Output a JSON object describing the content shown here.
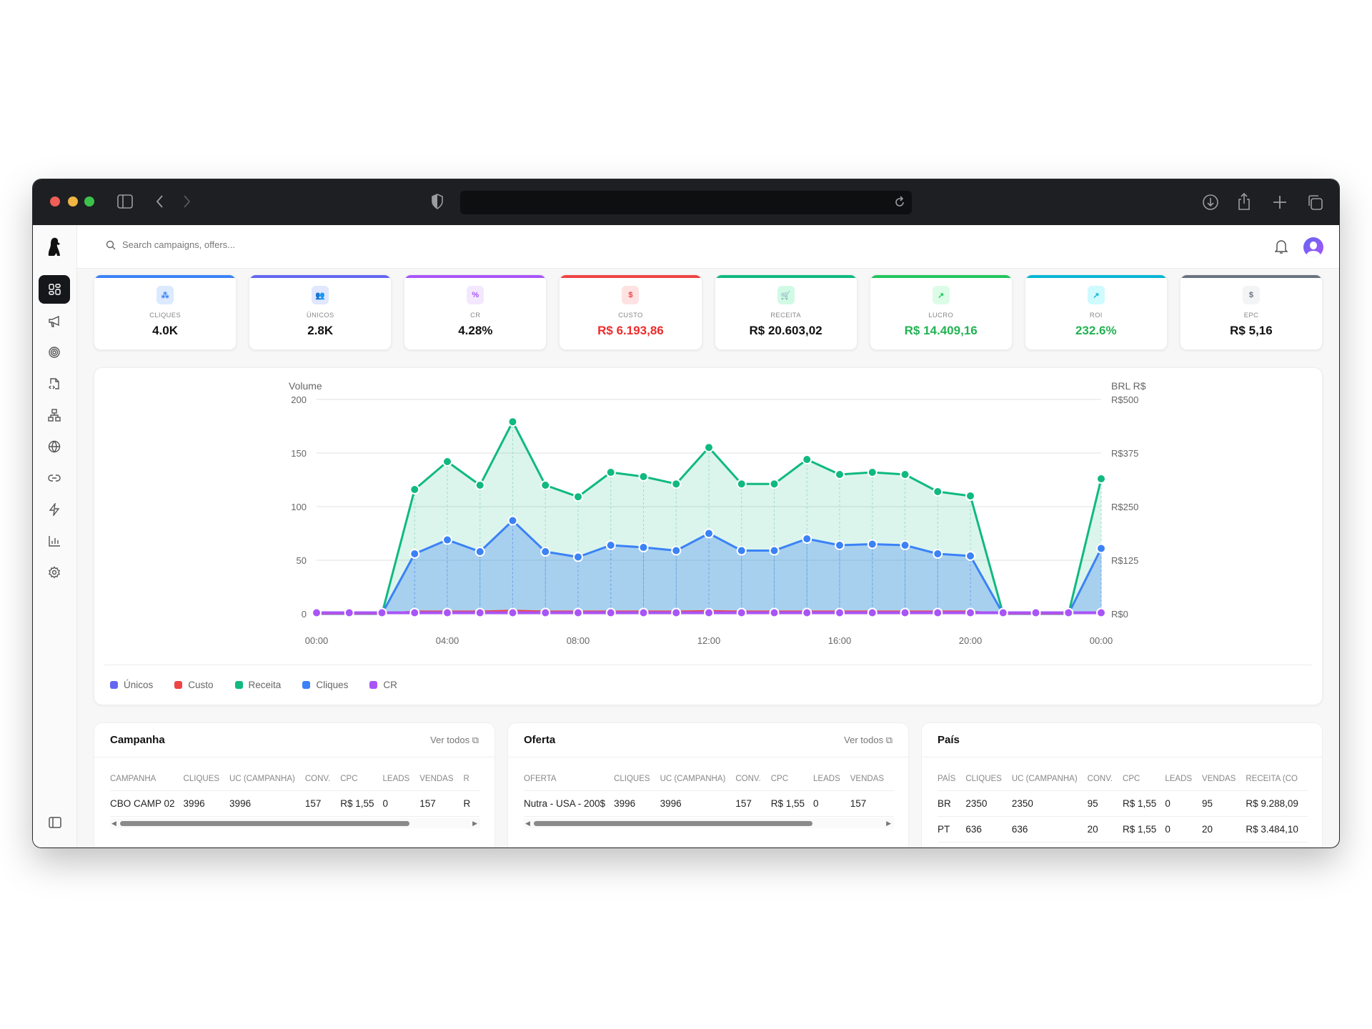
{
  "header": {
    "search_placeholder": "Search campaigns, offers..."
  },
  "sidebar": {
    "items": [
      "dashboard-icon",
      "megaphone-icon",
      "target-icon",
      "file-code-icon",
      "network-icon",
      "globe-icon",
      "link-icon",
      "zap-icon",
      "bar-chart-icon",
      "settings-icon"
    ],
    "active": 0
  },
  "kpis": [
    {
      "label": "CLIQUES",
      "value": "4.0K",
      "icon": "pointer-click-icon",
      "glyph": "⁂",
      "accent": "#3b82f6",
      "icon_bg": "#dbeafe",
      "value_color": "#111111"
    },
    {
      "label": "ÚNICOS",
      "value": "2.8K",
      "icon": "users-icon",
      "glyph": "👥",
      "accent": "#6366f1",
      "icon_bg": "#e0e7ff",
      "value_color": "#111111"
    },
    {
      "label": "CR",
      "value": "4.28%",
      "icon": "percent-icon",
      "glyph": "%",
      "accent": "#a855f7",
      "icon_bg": "#f3e8ff",
      "value_color": "#111111"
    },
    {
      "label": "CUSTO",
      "value": "R$ 6.193,86",
      "icon": "dollar-icon",
      "glyph": "$",
      "accent": "#ef4444",
      "icon_bg": "#fee2e2",
      "value_color": "#ef2b2b"
    },
    {
      "label": "RECEITA",
      "value": "R$ 20.603,02",
      "icon": "cart-icon",
      "glyph": "🛒",
      "accent": "#10b981",
      "icon_bg": "#d1fae5",
      "value_color": "#111111"
    },
    {
      "label": "LUCRO",
      "value": "R$ 14.409,16",
      "icon": "trending-up-icon",
      "glyph": "↗",
      "accent": "#22c55e",
      "icon_bg": "#dcfce7",
      "value_color": "#22b352"
    },
    {
      "label": "ROI",
      "value": "232.6%",
      "icon": "arrow-up-right-icon",
      "glyph": "↗",
      "accent": "#06b6d4",
      "icon_bg": "#cffafe",
      "value_color": "#22b352"
    },
    {
      "label": "EPC",
      "value": "R$ 5,16",
      "icon": "dollar-icon",
      "glyph": "$",
      "accent": "#6b7280",
      "icon_bg": "#f3f4f6",
      "value_color": "#111111"
    }
  ],
  "chart_data": {
    "type": "area",
    "y_left_label": "Volume",
    "y_right_label": "BRL R$",
    "ylim_left": [
      0,
      200
    ],
    "ylim_right": [
      0,
      500
    ],
    "y_left_ticks": [
      "0",
      "50",
      "100",
      "150",
      "200"
    ],
    "y_right_ticks": [
      "R$0",
      "R$125",
      "R$250",
      "R$375",
      "R$500"
    ],
    "x": [
      "00:00",
      "01:00",
      "02:00",
      "03:00",
      "04:00",
      "05:00",
      "06:00",
      "07:00",
      "08:00",
      "09:00",
      "10:00",
      "11:00",
      "12:00",
      "13:00",
      "14:00",
      "15:00",
      "16:00",
      "17:00",
      "18:00",
      "19:00",
      "20:00",
      "21:00",
      "22:00",
      "23:00",
      "00:00"
    ],
    "x_tick_labels": [
      "00:00",
      "04:00",
      "08:00",
      "12:00",
      "16:00",
      "20:00",
      "00:00"
    ],
    "grid": true,
    "legend_position": "bottom-left",
    "series": [
      {
        "name": "Únicos",
        "color": "#6366f1",
        "axis": "left",
        "values": null
      },
      {
        "name": "Custo",
        "color": "#ef4444",
        "axis": "right",
        "values": [
          0,
          0,
          0,
          6,
          6,
          6,
          8,
          6,
          6,
          6,
          6,
          6,
          7,
          6,
          6,
          6,
          6,
          6,
          6,
          6,
          6,
          0,
          0,
          0,
          5
        ]
      },
      {
        "name": "Receita",
        "color": "#10b981",
        "axis": "right",
        "values": [
          0,
          0,
          0,
          290,
          355,
          300,
          448,
          300,
          273,
          330,
          320,
          303,
          388,
          303,
          303,
          360,
          325,
          330,
          325,
          285,
          275,
          0,
          0,
          0,
          315
        ]
      },
      {
        "name": "Cliques",
        "color": "#3b82f6",
        "axis": "left",
        "values": [
          0,
          0,
          0,
          56,
          69,
          58,
          87,
          58,
          53,
          64,
          62,
          59,
          75,
          59,
          59,
          70,
          64,
          65,
          64,
          56,
          54,
          0,
          0,
          0,
          61
        ]
      },
      {
        "name": "CR",
        "color": "#a855f7",
        "axis": "left",
        "values": [
          1,
          1,
          1,
          1,
          1,
          1,
          1,
          1,
          1,
          1,
          1,
          1,
          1,
          1,
          1,
          1,
          1,
          1,
          1,
          1,
          1,
          1,
          1,
          1,
          1
        ]
      }
    ]
  },
  "tables": [
    {
      "title": "Campanha",
      "link": "Ver todos",
      "columns": [
        "CAMPANHA",
        "CLIQUES",
        "UC (CAMPANHA)",
        "CONV.",
        "CPC",
        "LEADS",
        "VENDAS",
        "R"
      ],
      "rows": [
        [
          "CBO CAMP 02",
          "3996",
          "3996",
          "157",
          "R$ 1,55",
          "0",
          "157",
          "R"
        ]
      ],
      "scroll": true
    },
    {
      "title": "Oferta",
      "link": "Ver todos",
      "columns": [
        "OFERTA",
        "CLIQUES",
        "UC (CAMPANHA)",
        "CONV.",
        "CPC",
        "LEADS",
        "VENDAS"
      ],
      "rows": [
        [
          "Nutra - USA - 200$",
          "3996",
          "3996",
          "157",
          "R$ 1,55",
          "0",
          "157"
        ]
      ],
      "scroll": true
    },
    {
      "title": "País",
      "link": "",
      "columns": [
        "PAÍS",
        "CLIQUES",
        "UC (CAMPANHA)",
        "CONV.",
        "CPC",
        "LEADS",
        "VENDAS",
        "RECEITA (CO"
      ],
      "rows": [
        [
          "BR",
          "2350",
          "2350",
          "95",
          "R$ 1,55",
          "0",
          "95",
          "R$ 9.288,09"
        ],
        [
          "PT",
          "636",
          "636",
          "20",
          "R$ 1,55",
          "0",
          "20",
          "R$ 3.484,10"
        ]
      ],
      "scroll": false
    }
  ]
}
